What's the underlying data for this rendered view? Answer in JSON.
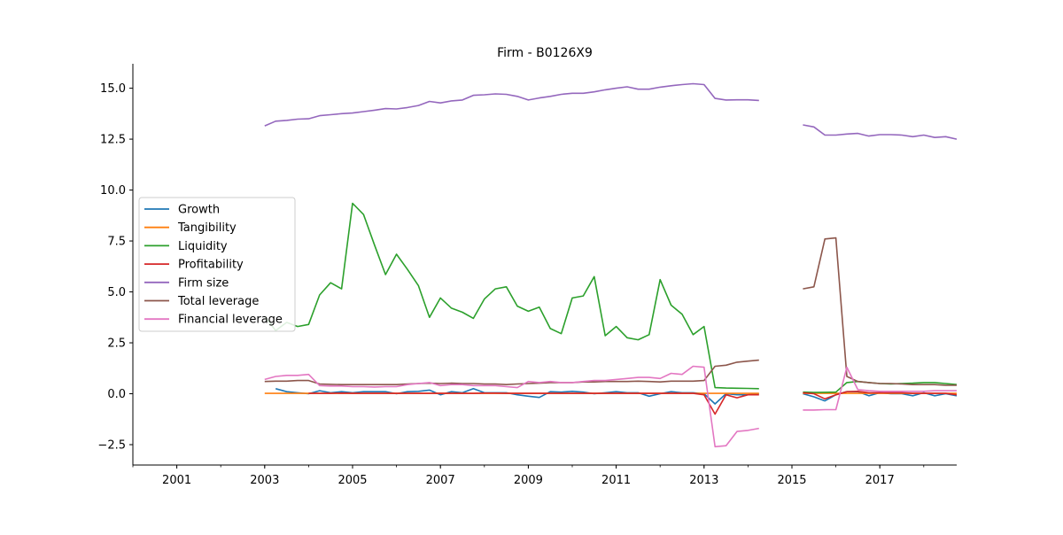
{
  "chart_data": {
    "type": "line",
    "title": "Firm - B0126X9",
    "xlabel": "",
    "ylabel": "",
    "xlim": [
      2000,
      2018.75
    ],
    "ylim": [
      -3.5,
      16.2
    ],
    "x_ticks": [
      2001,
      2003,
      2005,
      2007,
      2009,
      2011,
      2013,
      2015,
      2017
    ],
    "y_ticks": [
      -2.5,
      0.0,
      2.5,
      5.0,
      7.5,
      10.0,
      12.5,
      15.0
    ],
    "y_tick_labels": [
      "−2.5",
      "0.0",
      "2.5",
      "5.0",
      "7.5",
      "10.0",
      "12.5",
      "15.0"
    ],
    "grid": false,
    "legend": "center-left",
    "series": [
      {
        "name": "Growth",
        "color": "#1f77b4",
        "x": [
          2003.25,
          2003.5,
          2003.75,
          2004.0,
          2004.25,
          2004.5,
          2004.75,
          2005.0,
          2005.25,
          2005.5,
          2005.75,
          2006.0,
          2006.25,
          2006.5,
          2006.75,
          2007.0,
          2007.25,
          2007.5,
          2007.75,
          2008.0,
          2008.25,
          2008.5,
          2008.75,
          2009.0,
          2009.25,
          2009.5,
          2009.75,
          2010.0,
          2010.25,
          2010.5,
          2010.75,
          2011.0,
          2011.25,
          2011.5,
          2011.75,
          2012.0,
          2012.25,
          2012.5,
          2012.75,
          2013.0,
          2013.25,
          2013.5,
          2013.75,
          2014.0,
          2014.25,
          null,
          2015.25,
          2015.5,
          2015.75,
          2016.0,
          2016.25,
          2016.5,
          2016.75,
          2017.0,
          2017.25,
          2017.5,
          2017.75,
          2018.0,
          2018.25,
          2018.5,
          2018.75
        ],
        "values": [
          0.25,
          0.1,
          0.05,
          0.0,
          0.15,
          0.05,
          0.1,
          0.05,
          0.1,
          0.1,
          0.1,
          0.0,
          0.1,
          0.12,
          0.18,
          -0.05,
          0.1,
          0.05,
          0.25,
          0.05,
          0.05,
          0.05,
          -0.05,
          -0.12,
          -0.18,
          0.1,
          0.08,
          0.12,
          0.08,
          0.0,
          0.05,
          0.1,
          0.05,
          0.05,
          -0.12,
          0.0,
          0.1,
          0.05,
          0.05,
          0.0,
          -0.5,
          0.0,
          -0.05,
          -0.05,
          0.0,
          null,
          0.0,
          -0.15,
          -0.35,
          -0.05,
          0.1,
          0.1,
          -0.1,
          0.05,
          0.0,
          0.0,
          -0.1,
          0.05,
          -0.1,
          0.0,
          -0.1
        ]
      },
      {
        "name": "Tangibility",
        "color": "#ff7f0e",
        "x": [
          2003.0,
          2003.25,
          2003.5,
          2003.75,
          2004.0,
          2004.25,
          2004.5,
          2004.75,
          2005.0,
          2005.25,
          2005.5,
          2005.75,
          2006.0,
          2006.25,
          2006.5,
          2006.75,
          2007.0,
          2007.25,
          2007.5,
          2007.75,
          2008.0,
          2008.25,
          2008.5,
          2008.75,
          2009.0,
          2009.25,
          2009.5,
          2009.75,
          2010.0,
          2010.25,
          2010.5,
          2010.75,
          2011.0,
          2011.25,
          2011.5,
          2011.75,
          2012.0,
          2012.25,
          2012.5,
          2012.75,
          2013.0,
          2013.25,
          2013.5,
          2013.75,
          2014.0,
          2014.25,
          null,
          2015.25,
          2015.5,
          2015.75,
          2016.0,
          2016.25,
          2016.5,
          2016.75,
          2017.0,
          2017.25,
          2017.5,
          2017.75,
          2018.0,
          2018.25,
          2018.5,
          2018.75
        ],
        "values": [
          0.02,
          0.02,
          0.02,
          0.02,
          0.02,
          0.02,
          0.02,
          0.02,
          0.02,
          0.02,
          0.02,
          0.02,
          0.02,
          0.02,
          0.02,
          0.02,
          0.02,
          0.02,
          0.02,
          0.02,
          0.02,
          0.02,
          0.02,
          0.02,
          0.02,
          0.02,
          0.02,
          0.02,
          0.02,
          0.02,
          0.02,
          0.02,
          0.02,
          0.02,
          0.02,
          0.02,
          0.02,
          0.02,
          0.02,
          0.02,
          0.02,
          0.02,
          0.02,
          0.02,
          0.02,
          0.02,
          null,
          0.02,
          0.02,
          0.02,
          0.02,
          0.02,
          0.02,
          0.02,
          0.02,
          0.02,
          0.02,
          0.02,
          0.02,
          0.02,
          0.02,
          0.02
        ]
      },
      {
        "name": "Liquidity",
        "color": "#2ca02c",
        "x": [
          2003.0,
          2003.25,
          2003.5,
          2003.75,
          2004.0,
          2004.25,
          2004.5,
          2004.75,
          2005.0,
          2005.25,
          2005.5,
          2005.75,
          2006.0,
          2006.25,
          2006.5,
          2006.75,
          2007.0,
          2007.25,
          2007.5,
          2007.75,
          2008.0,
          2008.25,
          2008.5,
          2008.75,
          2009.0,
          2009.25,
          2009.5,
          2009.75,
          2010.0,
          2010.25,
          2010.5,
          2010.75,
          2011.0,
          2011.25,
          2011.5,
          2011.75,
          2012.0,
          2012.25,
          2012.5,
          2012.75,
          2013.0,
          2013.25,
          2013.5,
          2013.75,
          2014.0,
          2014.25,
          null,
          2015.25,
          2015.5,
          2015.75,
          2016.0,
          2016.25,
          2016.5,
          2016.75,
          2017.0,
          2017.25,
          2017.5,
          2017.75,
          2018.0,
          2018.25,
          2018.5,
          2018.75
        ],
        "values": [
          3.8,
          3.1,
          3.5,
          3.3,
          3.4,
          4.85,
          5.45,
          5.15,
          9.35,
          8.8,
          7.3,
          5.85,
          6.85,
          6.1,
          5.3,
          3.75,
          4.7,
          4.2,
          4.0,
          3.7,
          4.65,
          5.15,
          5.25,
          4.3,
          4.05,
          4.25,
          3.2,
          2.95,
          4.7,
          4.8,
          5.75,
          2.85,
          3.3,
          2.75,
          2.65,
          2.9,
          5.6,
          4.35,
          3.9,
          2.9,
          3.3,
          0.3,
          0.28,
          0.27,
          0.26,
          0.25,
          null,
          0.08,
          0.06,
          0.07,
          0.08,
          0.55,
          0.6,
          0.55,
          0.5,
          0.48,
          0.5,
          0.52,
          0.55,
          0.55,
          0.5,
          0.45
        ]
      },
      {
        "name": "Profitability",
        "color": "#d62728",
        "x": [
          2004.0,
          2004.25,
          2004.5,
          2004.75,
          2005.0,
          2005.25,
          2005.5,
          2005.75,
          2006.0,
          2006.25,
          2006.5,
          2006.75,
          2007.0,
          2007.25,
          2007.5,
          2007.75,
          2008.0,
          2008.25,
          2008.5,
          2008.75,
          2009.0,
          2009.25,
          2009.5,
          2009.75,
          2010.0,
          2010.25,
          2010.5,
          2010.75,
          2011.0,
          2011.25,
          2011.5,
          2011.75,
          2012.0,
          2012.25,
          2012.5,
          2012.75,
          2013.0,
          2013.25,
          2013.5,
          2013.75,
          2014.0,
          2014.25,
          null,
          2015.25,
          2015.5,
          2015.75,
          2016.0,
          2016.25,
          2016.5,
          2016.75,
          2017.0,
          2017.25,
          2017.5,
          2017.75,
          2018.0,
          2018.25,
          2018.5,
          2018.75
        ],
        "values": [
          0.02,
          0.02,
          0.02,
          0.03,
          0.02,
          0.02,
          0.02,
          0.02,
          0.02,
          0.02,
          0.02,
          0.02,
          0.02,
          0.02,
          0.02,
          0.02,
          0.03,
          0.03,
          0.02,
          0.02,
          0.02,
          0.02,
          0.02,
          0.02,
          0.02,
          0.02,
          0.02,
          0.02,
          0.02,
          0.02,
          0.02,
          0.02,
          0.02,
          0.02,
          0.02,
          0.02,
          -0.05,
          -1.0,
          -0.05,
          -0.2,
          -0.05,
          -0.05,
          null,
          0.05,
          0.0,
          -0.25,
          -0.05,
          0.1,
          0.12,
          0.05,
          0.05,
          0.05,
          0.05,
          0.02,
          0.02,
          0.02,
          0.02,
          -0.05
        ]
      },
      {
        "name": "Firm size",
        "color": "#9467bd",
        "x": [
          2003.0,
          2003.25,
          2003.5,
          2003.75,
          2004.0,
          2004.25,
          2004.5,
          2004.75,
          2005.0,
          2005.25,
          2005.5,
          2005.75,
          2006.0,
          2006.25,
          2006.5,
          2006.75,
          2007.0,
          2007.25,
          2007.5,
          2007.75,
          2008.0,
          2008.25,
          2008.5,
          2008.75,
          2009.0,
          2009.25,
          2009.5,
          2009.75,
          2010.0,
          2010.25,
          2010.5,
          2010.75,
          2011.0,
          2011.25,
          2011.5,
          2011.75,
          2012.0,
          2012.25,
          2012.5,
          2012.75,
          2013.0,
          2013.25,
          2013.5,
          2013.75,
          2014.0,
          2014.25,
          null,
          2015.25,
          2015.5,
          2015.75,
          2016.0,
          2016.25,
          2016.5,
          2016.75,
          2017.0,
          2017.25,
          2017.5,
          2017.75,
          2018.0,
          2018.25,
          2018.5,
          2018.75
        ],
        "values": [
          13.15,
          13.38,
          13.42,
          13.48,
          13.5,
          13.65,
          13.7,
          13.75,
          13.78,
          13.85,
          13.92,
          14.0,
          13.98,
          14.05,
          14.15,
          14.35,
          14.28,
          14.38,
          14.42,
          14.65,
          14.68,
          14.72,
          14.7,
          14.6,
          14.42,
          14.52,
          14.6,
          14.7,
          14.75,
          14.75,
          14.82,
          14.92,
          15.0,
          15.07,
          14.95,
          14.95,
          15.05,
          15.12,
          15.18,
          15.22,
          15.18,
          14.5,
          14.42,
          14.43,
          14.43,
          14.4,
          null,
          13.2,
          13.1,
          12.7,
          12.7,
          12.75,
          12.78,
          12.65,
          12.72,
          12.72,
          12.7,
          12.62,
          12.7,
          12.58,
          12.62,
          12.5
        ]
      },
      {
        "name": "Total leverage",
        "color": "#8c564b",
        "x": [
          2003.0,
          2003.25,
          2003.5,
          2003.75,
          2004.0,
          2004.25,
          2004.5,
          2004.75,
          2005.0,
          2005.25,
          2005.5,
          2005.75,
          2006.0,
          2006.25,
          2006.5,
          2006.75,
          2007.0,
          2007.25,
          2007.5,
          2007.75,
          2008.0,
          2008.25,
          2008.5,
          2008.75,
          2009.0,
          2009.25,
          2009.5,
          2009.75,
          2010.0,
          2010.25,
          2010.5,
          2010.75,
          2011.0,
          2011.25,
          2011.5,
          2011.75,
          2012.0,
          2012.25,
          2012.5,
          2012.75,
          2013.0,
          2013.25,
          2013.5,
          2013.75,
          2014.0,
          2014.25,
          null,
          2015.25,
          2015.5,
          2015.75,
          2016.0,
          2016.25,
          2016.5,
          2016.75,
          2017.0,
          2017.25,
          2017.5,
          2017.75,
          2018.0,
          2018.25,
          2018.5,
          2018.75
        ],
        "values": [
          0.6,
          0.62,
          0.62,
          0.65,
          0.65,
          0.48,
          0.46,
          0.45,
          0.45,
          0.45,
          0.45,
          0.45,
          0.45,
          0.48,
          0.5,
          0.52,
          0.5,
          0.52,
          0.5,
          0.5,
          0.48,
          0.48,
          0.45,
          0.48,
          0.5,
          0.52,
          0.55,
          0.55,
          0.55,
          0.58,
          0.58,
          0.6,
          0.6,
          0.6,
          0.62,
          0.6,
          0.58,
          0.62,
          0.62,
          0.62,
          0.65,
          1.35,
          1.4,
          1.55,
          1.6,
          1.65,
          null,
          5.15,
          5.25,
          7.6,
          7.65,
          0.85,
          0.6,
          0.55,
          0.5,
          0.5,
          0.48,
          0.45,
          0.45,
          0.45,
          0.42,
          0.42
        ]
      },
      {
        "name": "Financial leverage",
        "color": "#e377c2",
        "x": [
          2003.0,
          2003.25,
          2003.5,
          2003.75,
          2004.0,
          2004.25,
          2004.5,
          2004.75,
          2005.0,
          2005.25,
          2005.5,
          2005.75,
          2006.0,
          2006.25,
          2006.5,
          2006.75,
          2007.0,
          2007.25,
          2007.5,
          2007.75,
          2008.0,
          2008.25,
          2008.5,
          2008.75,
          2009.0,
          2009.25,
          2009.5,
          2009.75,
          2010.0,
          2010.25,
          2010.5,
          2010.75,
          2011.0,
          2011.25,
          2011.5,
          2011.75,
          2012.0,
          2012.25,
          2012.5,
          2012.75,
          2013.0,
          2013.25,
          2013.5,
          2013.75,
          2014.0,
          2014.25,
          null,
          2015.25,
          2015.5,
          2015.75,
          2016.0,
          2016.25,
          2016.5,
          2016.75,
          2017.0,
          2017.25,
          2017.5,
          2017.75,
          2018.0,
          2018.25,
          2018.5,
          2018.75
        ],
        "values": [
          0.7,
          0.85,
          0.9,
          0.9,
          0.95,
          0.4,
          0.38,
          0.38,
          0.35,
          0.35,
          0.33,
          0.35,
          0.35,
          0.45,
          0.5,
          0.55,
          0.4,
          0.45,
          0.45,
          0.4,
          0.4,
          0.4,
          0.35,
          0.3,
          0.6,
          0.55,
          0.6,
          0.55,
          0.55,
          0.6,
          0.65,
          0.65,
          0.7,
          0.75,
          0.8,
          0.8,
          0.75,
          1.0,
          0.95,
          1.35,
          1.3,
          -2.6,
          -2.55,
          -1.85,
          -1.8,
          -1.7,
          null,
          -0.8,
          -0.8,
          -0.78,
          -0.78,
          1.3,
          0.2,
          0.15,
          0.12,
          0.12,
          0.12,
          0.12,
          0.12,
          0.15,
          0.15,
          0.15
        ]
      }
    ]
  }
}
